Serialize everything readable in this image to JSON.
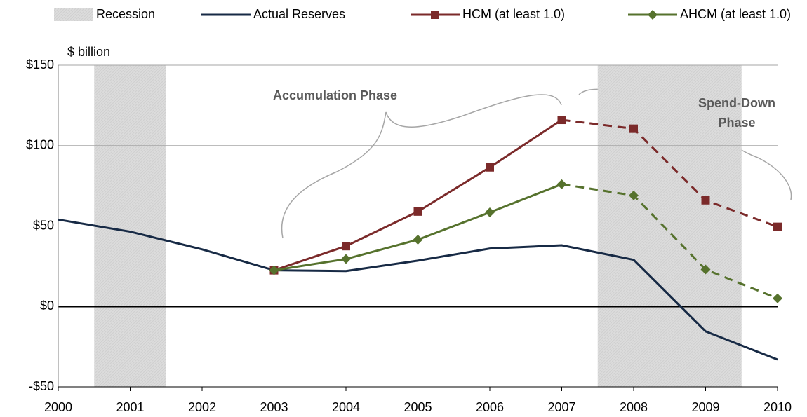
{
  "chart_data": {
    "type": "line",
    "y_label": "$ billion",
    "x": [
      2000,
      2001,
      2002,
      2003,
      2004,
      2005,
      2006,
      2007,
      2008,
      2009,
      2010
    ],
    "xlim": [
      2000,
      2010
    ],
    "xticks": [
      2000,
      2001,
      2002,
      2003,
      2004,
      2005,
      2006,
      2007,
      2008,
      2009,
      2010
    ],
    "ylim": [
      -50,
      150
    ],
    "yticks": [
      {
        "value": -50,
        "label": "-$50"
      },
      {
        "value": 0,
        "label": "$0"
      },
      {
        "value": 50,
        "label": "$50"
      },
      {
        "value": 100,
        "label": "$100"
      },
      {
        "value": 150,
        "label": "$150"
      }
    ],
    "grid": true,
    "recession": {
      "name": "Recession",
      "color": "#d9d9d9",
      "spans": [
        [
          2000.5,
          2001.5
        ],
        [
          2007.5,
          2009.5
        ]
      ]
    },
    "series": [
      {
        "name": "Actual Reserves",
        "color": "#172a45",
        "values": [
          54,
          46.5,
          35.5,
          22.5,
          22,
          28.5,
          36,
          38,
          29,
          -15.5,
          -33
        ]
      },
      {
        "name": "HCM (at least 1.0)",
        "color": "#7b2a2a",
        "marker": "square",
        "dashed_from": 2007,
        "values": [
          null,
          null,
          null,
          22.5,
          37.5,
          59,
          86.5,
          116,
          110.5,
          66,
          49.5
        ]
      },
      {
        "name": "AHCM (at least 1.0)",
        "color": "#56722d",
        "marker": "diamond",
        "dashed_from": 2007,
        "values": [
          null,
          null,
          null,
          22.5,
          29.5,
          41.5,
          58.5,
          76,
          69,
          23,
          5
        ]
      }
    ],
    "annotations": [
      "Accumulation Phase",
      "Spend-Down Phase"
    ]
  }
}
